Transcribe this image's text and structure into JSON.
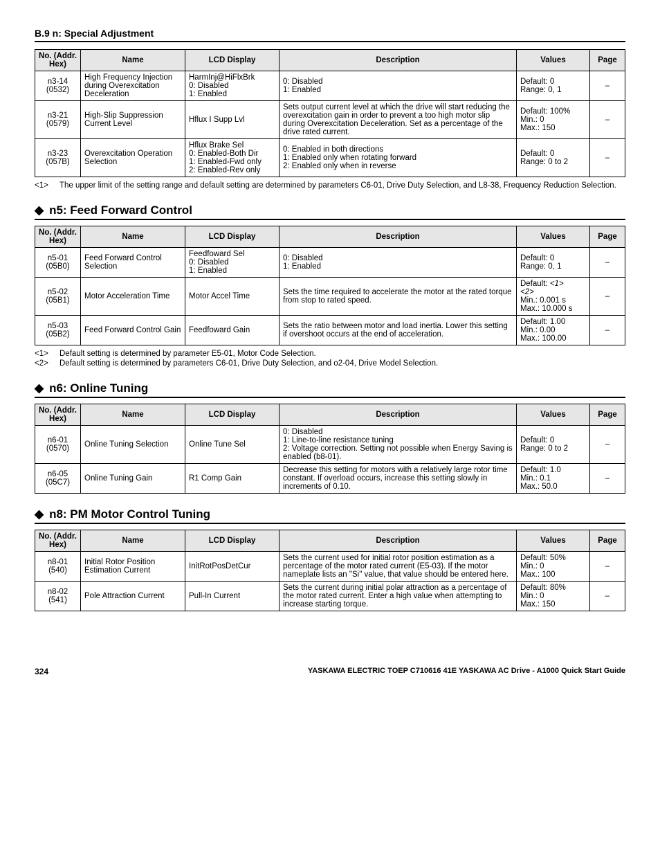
{
  "header": {
    "title": "B.9 n: Special Adjustment"
  },
  "columnHeaders": {
    "no": "No. (Addr. Hex)",
    "name": "Name",
    "lcd": "LCD Display",
    "desc": "Description",
    "values": "Values",
    "page": "Page"
  },
  "tables": {
    "t1": {
      "rows": [
        {
          "no1": "n3-14",
          "no2": "(0532)",
          "name": "High Frequency Injection during Overexcitation Deceleration",
          "lcd": "HarmInj@HiFlxBrk\n0: Disabled\n1: Enabled",
          "desc": "0: Disabled\n1: Enabled",
          "values": "Default: 0\nRange: 0, 1",
          "page": "–"
        },
        {
          "no1": "n3-21",
          "no2": "(0579)",
          "name": "High-Slip Suppression Current Level",
          "lcd": "Hflux I Supp Lvl",
          "desc": "Sets output current level at which the drive will start reducing the overexcitation gain in order to prevent a too high motor slip during Overexcitation Deceleration. Set as a percentage of the drive rated current.",
          "values": "Default: 100%\nMin.: 0\nMax.: 150",
          "page": "–"
        },
        {
          "no1": "n3-23",
          "no2": "(057B)",
          "name": "Overexcitation Operation Selection",
          "lcd": "Hflux Brake Sel\n0: Enabled-Both Dir\n1: Enabled-Fwd only\n2: Enabled-Rev only",
          "desc": "0: Enabled in both directions\n1: Enabled only when rotating forward\n2: Enabled only when in reverse",
          "values": "Default: 0\nRange: 0 to 2",
          "page": "–"
        }
      ],
      "notes": [
        {
          "tag": "<1>",
          "text": "The upper limit of the setting range and default setting are determined by parameters C6-01, Drive Duty Selection, and L8-38, Frequency Reduction Selection."
        }
      ]
    },
    "t2": {
      "heading": "n5: Feed Forward Control",
      "rows": [
        {
          "no1": "n5-01",
          "no2": "(05B0)",
          "name": "Feed Forward Control Selection",
          "lcd": "Feedfoward Sel\n0: Disabled\n1: Enabled",
          "desc": "0: Disabled\n1: Enabled",
          "values": "Default: 0\nRange: 0, 1",
          "page": "–"
        },
        {
          "no1": "n5-02",
          "no2": "(05B1)",
          "name": "Motor Acceleration Time",
          "lcd": "Motor Accel Time",
          "desc": "Sets the time required to accelerate the motor at the rated torque from stop to rated speed.",
          "values_html": "Default: <span class='ital'>&lt;1&gt;</span><br><span class='ital'>&lt;2&gt;</span><br>Min.: 0.001 s<br>Max.: 10.000 s",
          "page": "–"
        },
        {
          "no1": "n5-03",
          "no2": "(05B2)",
          "name": "Feed Forward Control Gain",
          "lcd": "Feedfoward Gain",
          "desc": "Sets the ratio between motor and load inertia. Lower this setting if overshoot occurs at the end of acceleration.",
          "values": "Default: 1.00\nMin.: 0.00\nMax.: 100.00",
          "page": "–"
        }
      ],
      "notes": [
        {
          "tag": "<1>",
          "text": "Default setting is determined by parameter E5-01, Motor Code Selection."
        },
        {
          "tag": "<2>",
          "text": "Default setting is determined by parameters C6-01, Drive Duty Selection, and o2-04, Drive Model Selection."
        }
      ]
    },
    "t3": {
      "heading": "n6: Online Tuning",
      "rows": [
        {
          "no1": "n6-01",
          "no2": "(0570)",
          "name": "Online Tuning Selection",
          "lcd": "Online Tune Sel",
          "desc": "0: Disabled\n1: Line-to-line resistance tuning\n2: Voltage correction. Setting not possible when Energy Saving is enabled (b8-01).",
          "values": "Default: 0\nRange: 0 to 2",
          "page": "–"
        },
        {
          "no1": "n6-05",
          "no2": "(05C7)",
          "name": "Online Tuning Gain",
          "lcd": "R1 Comp Gain",
          "desc": "Decrease this setting for motors with a relatively large rotor time constant. If overload occurs, increase this setting slowly in increments of 0.10.",
          "values": "Default: 1.0\nMin.: 0.1\nMax.: 50.0",
          "page": "–"
        }
      ]
    },
    "t4": {
      "heading": "n8: PM Motor Control Tuning",
      "rows": [
        {
          "no1": "n8-01",
          "no2": "(540)",
          "name": "Initial Rotor Position Estimation Current",
          "lcd": "InitRotPosDetCur",
          "desc": "Sets the current used for initial rotor position estimation as a percentage of the motor rated current (E5-03). If the motor nameplate lists an \"Si\" value, that value should be entered here.",
          "values": "Default: 50%\nMin.: 0\nMax.: 100",
          "page": "–"
        },
        {
          "no1": "n8-02",
          "no2": "(541)",
          "name": "Pole Attraction Current",
          "lcd": "Pull-In Current",
          "desc": "Sets the current during initial polar attraction as a percentage of the motor rated current. Enter a high value when attempting to increase starting torque.",
          "values": "Default: 80%\nMin.: 0\nMax.: 150",
          "page": "–"
        }
      ]
    }
  },
  "footer": {
    "pageNum": "324",
    "source": "YASKAWA ELECTRIC TOEP C710616 41E YASKAWA AC Drive - A1000 Quick Start Guide"
  }
}
